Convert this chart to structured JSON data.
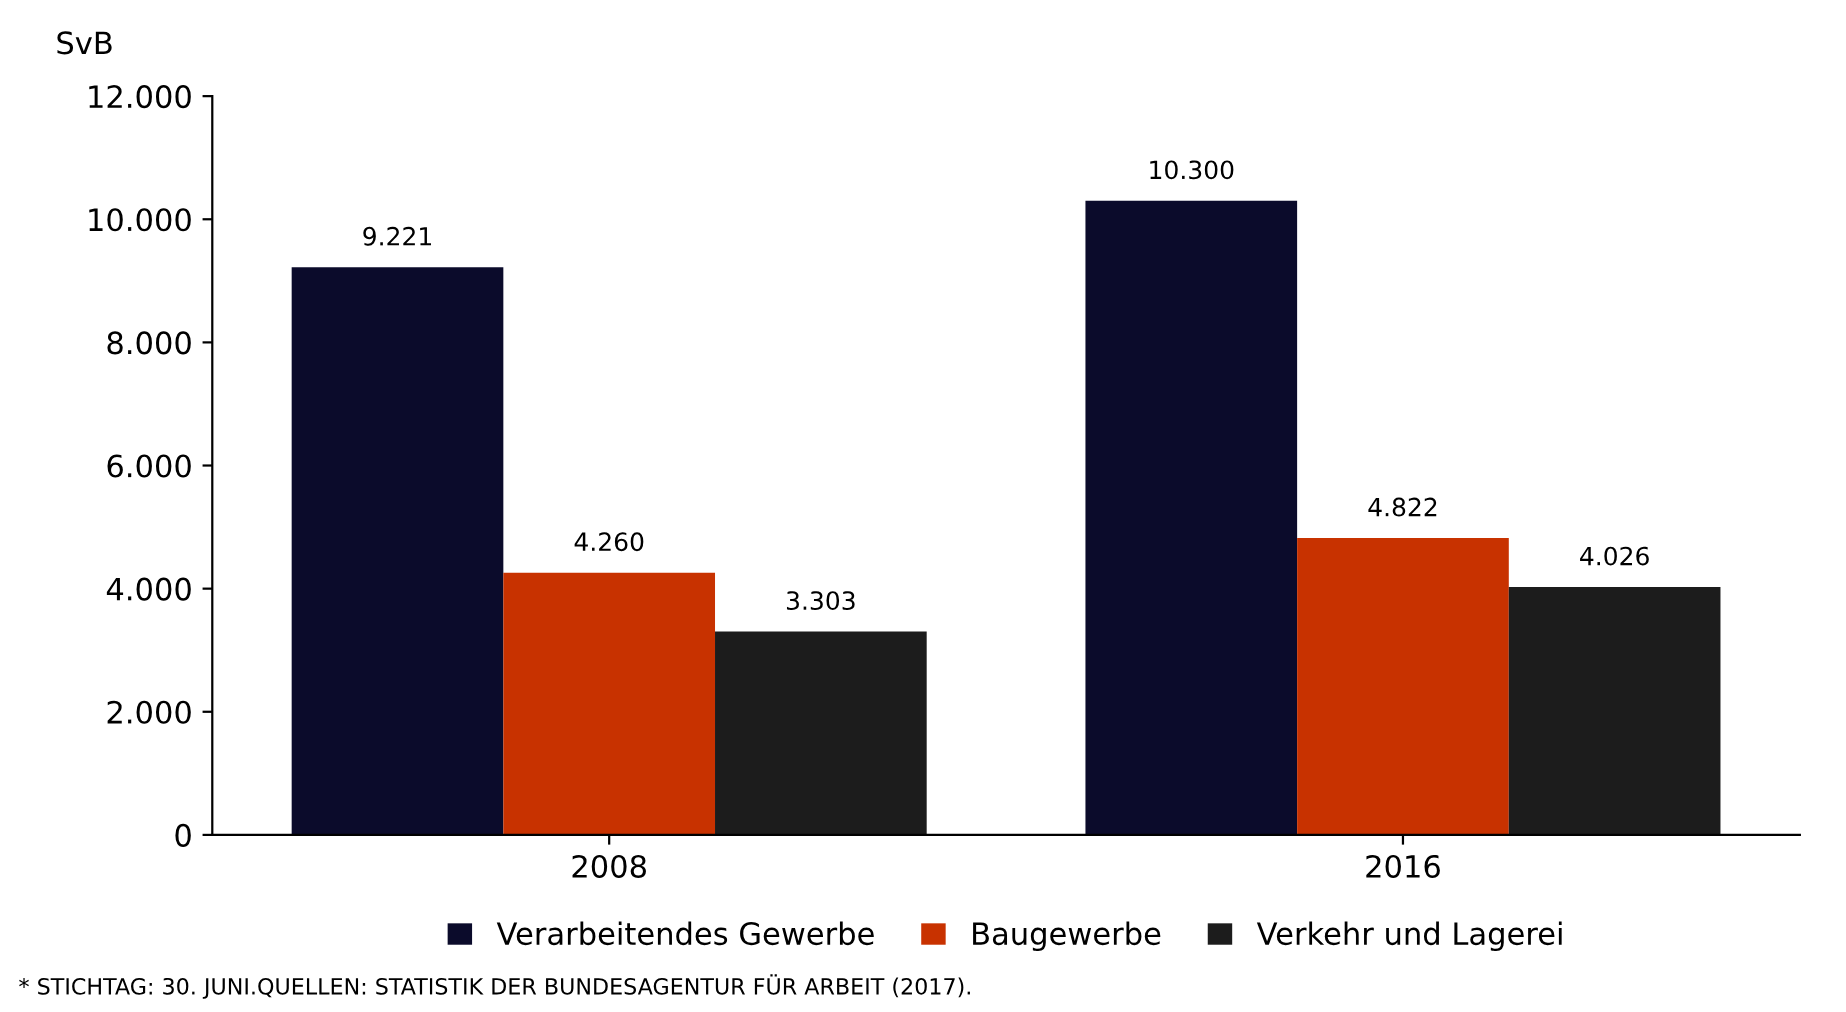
{
  "chart_data": {
    "type": "bar",
    "ylabel": "SvB",
    "categories": [
      "2008",
      "2016"
    ],
    "series": [
      {
        "name": "Verarbeitendes Gewerbe",
        "color": "#0b0b2b",
        "values": [
          9221,
          10300
        ],
        "value_labels": [
          "9.221",
          "10.300"
        ]
      },
      {
        "name": "Baugewerbe",
        "color": "#c83200",
        "values": [
          4260,
          4822
        ],
        "value_labels": [
          "4.260",
          "4.822"
        ]
      },
      {
        "name": "Verkehr und Lagerei",
        "color": "#1c1c1c",
        "values": [
          3303,
          4026
        ],
        "value_labels": [
          "3.303",
          "4.026"
        ]
      }
    ],
    "ylim": [
      0,
      12000
    ],
    "yticks": [
      {
        "value": 0,
        "label": "0"
      },
      {
        "value": 2000,
        "label": "2.000"
      },
      {
        "value": 4000,
        "label": "4.000"
      },
      {
        "value": 6000,
        "label": "6.000"
      },
      {
        "value": 8000,
        "label": "8.000"
      },
      {
        "value": 10000,
        "label": "10.000"
      },
      {
        "value": 12000,
        "label": "12.000"
      }
    ],
    "grid": false,
    "legend": "bottom",
    "annotations": [
      "* STICHTAG: 30. JUNI.QUELLEN: STATISTIK DER BUNDESAGENTUR FÜR ARBEIT (2017)."
    ]
  }
}
